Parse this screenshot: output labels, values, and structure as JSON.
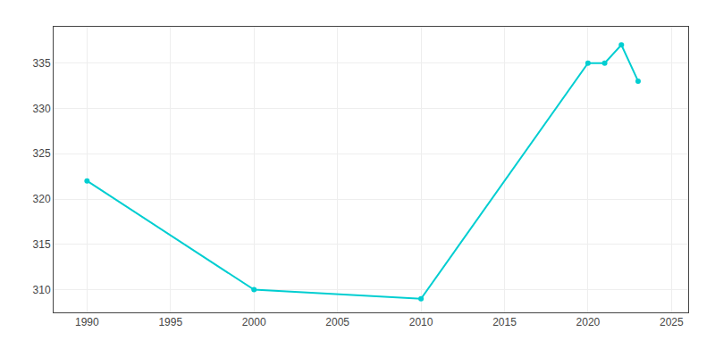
{
  "chart_data": {
    "type": "line",
    "x": [
      1990,
      2000,
      2010,
      2020,
      2021,
      2022,
      2023
    ],
    "values": [
      322,
      310,
      309,
      335,
      335,
      337,
      333
    ],
    "color": "#00CED1",
    "marker": "circle",
    "xlim": [
      1988,
      2026
    ],
    "ylim": [
      307.5,
      339
    ],
    "xticks": [
      1990,
      1995,
      2000,
      2005,
      2010,
      2015,
      2020,
      2025
    ],
    "yticks": [
      310,
      315,
      320,
      325,
      330,
      335
    ],
    "grid": true
  }
}
